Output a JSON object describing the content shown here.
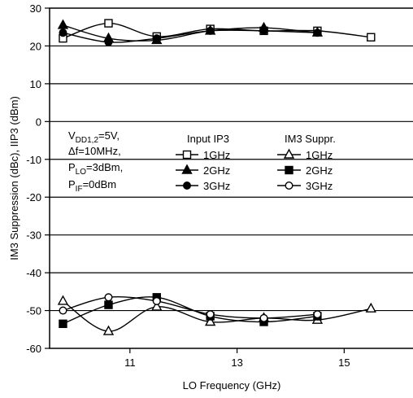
{
  "chart_data": {
    "type": "line",
    "xlabel": "LO Frequency (GHz)",
    "ylabel": "IM3 Suppression (dBc), IIP3 (dBm)",
    "xlim": [
      9.5,
      16.3
    ],
    "ylim": [
      -60,
      30
    ],
    "xticks": [
      11,
      13,
      15
    ],
    "yticks": [
      30,
      20,
      10,
      0,
      -10,
      -20,
      -30,
      -40,
      -50,
      -60
    ],
    "grid": "horizontal",
    "conditions": {
      "vdd": {
        "main": "V",
        "sub": "DD1,2",
        "rest": "=5V,"
      },
      "df": {
        "main": "Δf=10MHz,"
      },
      "plo": {
        "main": "P",
        "sub": "LO",
        "rest": "=3dBm,"
      },
      "pif": {
        "main": "P",
        "sub": "IF",
        "rest": "=0dBm"
      }
    },
    "legend": {
      "group1_title": "Input IP3",
      "group2_title": "IM3 Suppr.",
      "labels": [
        "1GHz",
        "2GHz",
        "3GHz"
      ]
    },
    "series": [
      {
        "name": "Input IP3 1GHz",
        "group": "Input IP3",
        "marker": "square-open",
        "x": [
          9.75,
          10.6,
          11.5,
          12.5,
          13.5,
          14.5,
          15.5
        ],
        "y": [
          22,
          26,
          22.5,
          24.5,
          24,
          24,
          22.3
        ]
      },
      {
        "name": "Input IP3 2GHz",
        "group": "Input IP3",
        "marker": "triangle-filled",
        "x": [
          9.75,
          10.6,
          11.5,
          12.5,
          13.5,
          14.5
        ],
        "y": [
          25.5,
          22,
          21.5,
          24,
          24.8,
          23.5
        ]
      },
      {
        "name": "Input IP3 3GHz",
        "group": "Input IP3",
        "marker": "circle-filled",
        "x": [
          9.75,
          10.6,
          11.5,
          12.5,
          13.5,
          14.5
        ],
        "y": [
          23.5,
          21,
          22,
          24,
          24,
          23.5
        ]
      },
      {
        "name": "IM3 Suppr. 1GHz",
        "group": "IM3 Suppr.",
        "marker": "triangle-open",
        "x": [
          9.75,
          10.6,
          11.5,
          12.5,
          13.5,
          14.5,
          15.5
        ],
        "y": [
          -47.5,
          -55.5,
          -49,
          -53,
          -52,
          -52.5,
          -49.5
        ]
      },
      {
        "name": "IM3 Suppr. 2GHz",
        "group": "IM3 Suppr.",
        "marker": "square-filled",
        "x": [
          9.75,
          10.6,
          11.5,
          12.5,
          13.5,
          14.5
        ],
        "y": [
          -53.5,
          -48.5,
          -46.5,
          -51.5,
          -53,
          -51.5
        ]
      },
      {
        "name": "IM3 Suppr. 3GHz",
        "group": "IM3 Suppr.",
        "marker": "circle-open",
        "x": [
          9.75,
          10.6,
          11.5,
          12.5,
          13.5,
          14.5
        ],
        "y": [
          -50,
          -46.5,
          -47.5,
          -51,
          -52,
          -51
        ]
      }
    ]
  }
}
